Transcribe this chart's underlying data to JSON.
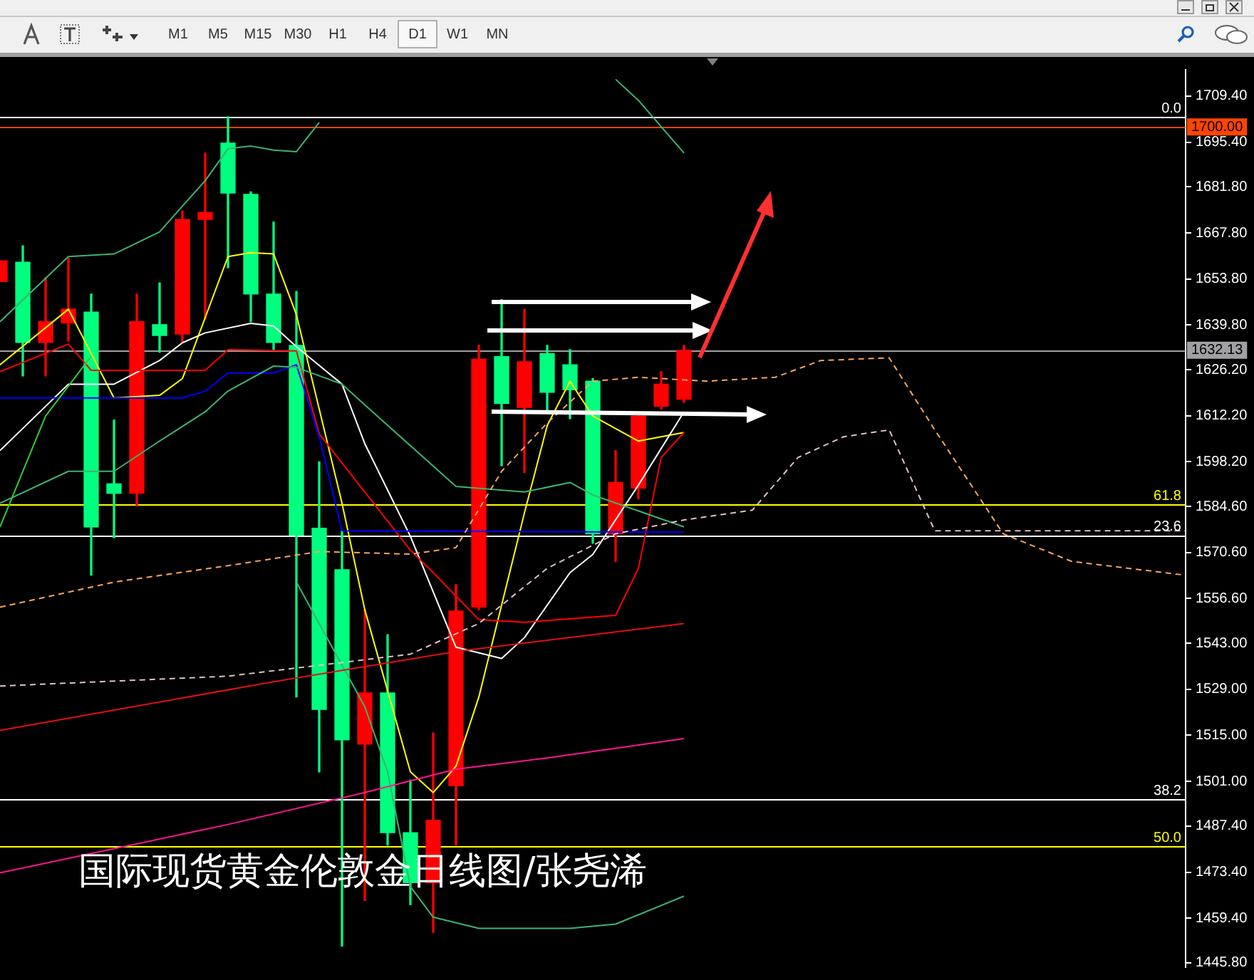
{
  "chart_data": {
    "type": "candlestick",
    "title": "国际现货黄金伦敦金日线图/张尧浠",
    "annotations": [
      "M1",
      "M5",
      "M15",
      "M30",
      "H1",
      "H4",
      "D1",
      "W1",
      "MN",
      {
        "text": "0.0",
        "y": 1703.1
      },
      {
        "text": "61.8",
        "y": 1585.2
      },
      {
        "text": "23.6",
        "y": 1575.9
      },
      {
        "text": "38.2",
        "y": 1495.5
      },
      {
        "text": "50.0",
        "y": 1481.2
      }
    ],
    "categories": [
      null,
      null,
      null,
      null,
      null,
      null,
      null,
      null,
      null,
      null,
      null,
      null,
      null,
      null,
      null,
      null,
      null,
      null,
      null,
      null,
      null,
      null,
      null,
      null,
      null,
      null,
      null,
      null,
      null,
      null,
      null,
      null,
      null,
      null,
      null,
      null,
      null,
      null,
      null,
      null,
      null,
      null,
      null,
      null,
      null,
      null,
      null,
      null,
      null,
      null,
      null,
      null,
      null
    ],
    "ylim": [
      1444.5,
      1717.4
    ],
    "yticks": [
      {
        "value": 1709.4,
        "label": "1709.40"
      },
      {
        "value": 1695.4,
        "label": "1695.40"
      },
      {
        "value": 1681.8,
        "label": "1681.80"
      },
      {
        "value": 1667.8,
        "label": "1667.80"
      },
      {
        "value": 1653.8,
        "label": "1653.80"
      },
      {
        "value": 1639.8,
        "label": "1639.80"
      },
      {
        "value": 1626.2,
        "label": "1626.20"
      },
      {
        "value": 1612.2,
        "label": "1612.20"
      },
      {
        "value": 1598.2,
        "label": "1598.20"
      },
      {
        "value": 1584.6,
        "label": "1584.60"
      },
      {
        "value": 1570.6,
        "label": "1570.60"
      },
      {
        "value": 1556.6,
        "label": "1556.60"
      },
      {
        "value": 1543,
        "label": "1543.00"
      },
      {
        "value": 1529,
        "label": "1529.00"
      },
      {
        "value": 1515,
        "label": "1515.00"
      },
      {
        "value": 1501,
        "label": "1501.00"
      },
      {
        "value": 1487.4,
        "label": "1487.40"
      },
      {
        "value": 1473.4,
        "label": "1473.40"
      },
      {
        "value": 1459.4,
        "label": "1459.40"
      },
      {
        "value": 1445.8,
        "label": "1445.80"
      }
    ],
    "tick_labels": "y",
    "marker": "none",
    "ref_lines": [
      {
        "axis": "y",
        "value": 1703.1,
        "color": "#ffffff"
      },
      {
        "axis": "y",
        "value": 1700,
        "label": "1700.00",
        "color": "#ff4500"
      },
      {
        "axis": "y",
        "value": 1632.13,
        "label": "1632.13",
        "color": "#a0a0a4"
      },
      {
        "axis": "y",
        "value": 1585.2,
        "color": "#ffff00"
      },
      {
        "axis": "y",
        "value": 1575.9,
        "color": "#ffffff"
      },
      {
        "axis": "y",
        "value": 1495.5,
        "color": "#ffffff"
      },
      {
        "axis": "y",
        "value": 1481.2,
        "color": "#ffff00"
      }
    ],
    "series": [
      {
        "type": "line",
        "color": "#f4a460",
        "line_style": "dashed",
        "values": [
          1554.0,
          null,
          null,
          null,
          null,
          1561.6,
          null,
          null,
          null,
          null,
          1566.6,
          null,
          null,
          null,
          1570.9,
          null,
          null,
          null,
          1570.1,
          null,
          1572.1,
          null,
          1595.3,
          null,
          1610.0,
          null,
          1622.7,
          null,
          1623.9,
          null,
          null,
          1622.7,
          null,
          null,
          1623.9,
          null,
          1629.0,
          null,
          null,
          1629.8,
          null,
          1607.9,
          null,
          null,
          1576.3,
          null,
          null,
          1567.9,
          null,
          null,
          null,
          null,
          1563.7
        ]
      },
      {
        "type": "line",
        "color": "#e0c0c0",
        "line_style": "dashed",
        "values": [
          1530.0,
          null,
          null,
          null,
          null,
          null,
          null,
          null,
          null,
          null,
          1533.0,
          null,
          null,
          null,
          1536.3,
          null,
          null,
          null,
          1539.7,
          null,
          null,
          1549.0,
          null,
          null,
          1565.8,
          null,
          null,
          1576.3,
          null,
          null,
          1580.5,
          null,
          null,
          1583.5,
          null,
          1599.5,
          null,
          1605.8,
          null,
          1607.9,
          null,
          1577.2,
          null,
          null,
          null,
          null,
          null,
          null,
          null,
          null,
          null,
          null,
          1577.2
        ]
      },
      {
        "type": "line",
        "color": "#ff1493",
        "values": [
          1473.2,
          null,
          null,
          null,
          null,
          null,
          null,
          null,
          null,
          null,
          1487.9,
          null,
          null,
          null,
          null,
          null,
          1497.6,
          null,
          null,
          null,
          1504.7,
          null,
          null,
          null,
          1508.1,
          null,
          null,
          null,
          null,
          null,
          1514.0,
          null,
          null,
          null,
          null,
          null,
          null,
          null,
          null,
          null,
          null,
          null,
          null,
          null,
          null,
          null,
          null,
          null,
          null,
          null,
          null,
          null,
          null
        ]
      },
      {
        "type": "line",
        "color": "#e01010",
        "values": [
          1516.5,
          null,
          null,
          null,
          null,
          null,
          null,
          null,
          null,
          null,
          null,
          null,
          1531.3,
          null,
          null,
          null,
          null,
          null,
          null,
          null,
          1540.5,
          null,
          null,
          null,
          null,
          null,
          null,
          null,
          null,
          null,
          1549.0,
          null,
          null,
          null,
          null,
          null,
          null,
          null,
          null,
          null,
          null,
          null,
          null,
          null,
          null,
          null,
          null,
          null,
          null,
          null,
          null,
          null,
          null
        ]
      },
      {
        "type": "line",
        "color": "#3cb371",
        "values": [
          1640.8,
          null,
          null,
          1660.6,
          null,
          1661.4,
          null,
          1668.1,
          null,
          1683.7,
          1693.4,
          1694.2,
          1693.0,
          1692.5,
          1701.4,
          null,
          null,
          null,
          null,
          null,
          null,
          null,
          null,
          null,
          null,
          null,
          null,
          null,
          null,
          null,
          null,
          null,
          null,
          null,
          null,
          null,
          null,
          null,
          null,
          null,
          null,
          null,
          null,
          null,
          null,
          null,
          null,
          null,
          null,
          null,
          null,
          null,
          null
        ]
      },
      {
        "type": "line",
        "color": "#3cb371",
        "values": [
          null,
          null,
          null,
          null,
          null,
          null,
          null,
          null,
          null,
          null,
          null,
          null,
          null,
          null,
          null,
          null,
          null,
          null,
          null,
          null,
          null,
          null,
          null,
          null,
          null,
          null,
          null,
          1714.5,
          1708.1,
          null,
          1692.1,
          null,
          null,
          null,
          null,
          null,
          null,
          null,
          null,
          null,
          null,
          null,
          null,
          null,
          null,
          null,
          null,
          null,
          null,
          null,
          null,
          null,
          null
        ]
      },
      {
        "type": "line",
        "color": "#3cb371",
        "values": [
          1585.6,
          null,
          null,
          1595.3,
          null,
          1595.3,
          null,
          1604.5,
          null,
          1613.4,
          1619.7,
          null,
          1627.3,
          1626.9,
          null,
          1621.8,
          1615.5,
          null,
          null,
          null,
          1590.7,
          null,
          null,
          1589.0,
          null,
          1591.9,
          1588.1,
          null,
          null,
          null,
          1578.4,
          null,
          null,
          null,
          null,
          null,
          null,
          null,
          null,
          null,
          null,
          null,
          null,
          null,
          null,
          null,
          null,
          null,
          null,
          null,
          null,
          null,
          null
        ]
      },
      {
        "type": "line",
        "color": "#3cb371",
        "values": [
          null,
          null,
          null,
          null,
          null,
          null,
          null,
          null,
          null,
          null,
          null,
          null,
          null,
          1561.6,
          null,
          null,
          1523.7,
          1503.9,
          1469.0,
          1459.7,
          null,
          1456.3,
          null,
          null,
          null,
          1456.3,
          null,
          1457.6,
          null,
          null,
          1466.1,
          null,
          null,
          null,
          null,
          null,
          null,
          null,
          null,
          null,
          null,
          null,
          null,
          null,
          null,
          null,
          null,
          null,
          null,
          null,
          null,
          null,
          null
        ]
      },
      {
        "type": "line",
        "color": "#32cd32",
        "values": [
          1578.4,
          null,
          1612.1,
          null,
          1630.3,
          null,
          null,
          null,
          null,
          null,
          null,
          null,
          null,
          null,
          null,
          null,
          null,
          null,
          null,
          null,
          null,
          null,
          null,
          null,
          null,
          null,
          null,
          null,
          null,
          null,
          null,
          null,
          null,
          null,
          null,
          null,
          null,
          null,
          null,
          null,
          null,
          null,
          null,
          null,
          null,
          null,
          null,
          null,
          null,
          null,
          null,
          null,
          null
        ]
      },
      {
        "type": "line",
        "color": "#0000ff",
        "values": [
          1617.6,
          null,
          null,
          null,
          null,
          null,
          null,
          null,
          1617.6,
          1619.7,
          1625.2,
          null,
          1625.2,
          1627.7,
          1605.8,
          1577.2,
          null,
          null,
          null,
          null,
          null,
          null,
          null,
          null,
          null,
          null,
          null,
          null,
          null,
          null,
          1576.8,
          null,
          null,
          null,
          null,
          null,
          null,
          null,
          null,
          null,
          null,
          null,
          null,
          null,
          null,
          null,
          null,
          null,
          null,
          null,
          null,
          null,
          null
        ]
      },
      {
        "type": "line",
        "color": "#ff0000",
        "values": [
          1625.6,
          null,
          null,
          1634.0,
          1626.0,
          null,
          null,
          null,
          null,
          1626.0,
          1632.3,
          null,
          null,
          1631.9,
          1606.7,
          null,
          null,
          null,
          1571.3,
          1564.5,
          null,
          1550.2,
          null,
          1549.4,
          null,
          null,
          null,
          1551.5,
          1565.8,
          1599.5,
          1607.1,
          null,
          null,
          null,
          null,
          null,
          null,
          null,
          null,
          null,
          null,
          null,
          null,
          null,
          null,
          null,
          null,
          null,
          null,
          null,
          null,
          null,
          null
        ]
      },
      {
        "type": "line",
        "color": "#ffffff",
        "values": [
          1601.6,
          null,
          null,
          1621.8,
          null,
          1621.8,
          null,
          1629.0,
          1634.4,
          1637.4,
          null,
          1640.3,
          1639.5,
          1633.2,
          null,
          1621.8,
          1603.7,
          null,
          1575.5,
          null,
          1541.8,
          null,
          1538.4,
          1544.7,
          null,
          1564.5,
          1570.0,
          null,
          1591.1,
          null,
          1613.4,
          null,
          null,
          null,
          null,
          null,
          null,
          null,
          null,
          null,
          null,
          null,
          null,
          null,
          null,
          null,
          null,
          null,
          null,
          null,
          null,
          null,
          null
        ]
      },
      {
        "type": "line",
        "color": "#ffff00",
        "values": [
          1627.7,
          null,
          null,
          1644.6,
          null,
          1617.6,
          null,
          1618.4,
          1623.5,
          null,
          1660.6,
          1661.8,
          1661.4,
          1642.9,
          null,
          1585.6,
          1553.2,
          null,
          1503.9,
          1497.6,
          1505.6,
          1526.6,
          null,
          1582.6,
          1609.2,
          1622.7,
          1612.1,
          null,
          1604.5,
          null,
          1607.1,
          null,
          null,
          null,
          null,
          null,
          null,
          null,
          null,
          null,
          null,
          null,
          null,
          null,
          null,
          null,
          null,
          null,
          null,
          null,
          null,
          null,
          null
        ]
      },
      {
        "type": "candlestick",
        "colors": [
          "#ff0000",
          "#00ff7f",
          "#ff0000",
          "#ff0000",
          "#00ff7f",
          "#00ff7f",
          "#ff0000",
          "#00ff7f",
          "#ff0000",
          "#ff0000",
          "#00ff7f",
          "#00ff7f",
          "#00ff7f",
          "#00ff7f",
          "#00ff7f",
          "#00ff7f",
          "#ff0000",
          "#00ff7f",
          "#00ff7f",
          "#ff0000",
          "#ff0000",
          "#ff0000",
          "#00ff7f",
          "#ff0000",
          "#00ff7f",
          "#00ff7f",
          "#00ff7f",
          "#ff0000",
          "#ff0000",
          "#ff0000",
          "#ff0000",
          null,
          null,
          null,
          null,
          null,
          null,
          null,
          null,
          null,
          null,
          null,
          null,
          null,
          null,
          null,
          null,
          null,
          null,
          null,
          null,
          null,
          null
        ],
        "ohlc": [
          [
            1653.0,
            1659.3,
            1653.0,
            1659.3
          ],
          [
            1658.9,
            1663.9,
            1624.3,
            1634.5
          ],
          [
            1634.5,
            1654.2,
            1624.3,
            1640.8
          ],
          [
            1640.4,
            1660.1,
            1634.9,
            1644.6
          ],
          [
            1643.7,
            1649.2,
            1563.7,
            1578.4
          ],
          [
            1591.5,
            1610.9,
            1575.1,
            1588.6
          ],
          [
            1588.6,
            1649.2,
            1584.8,
            1640.8
          ],
          [
            1639.9,
            1652.6,
            1631.5,
            1636.6
          ],
          [
            1637.0,
            1674.5,
            1634.5,
            1671.9
          ],
          [
            1671.9,
            1692.1,
            1641.6,
            1674.0
          ],
          [
            1695.1,
            1703.1,
            1657.2,
            1679.9
          ],
          [
            1679.5,
            1680.3,
            1640.8,
            1649.2
          ],
          [
            1649.2,
            1671.1,
            1632.3,
            1634.5
          ],
          [
            1633.6,
            1650.0,
            1526.7,
            1575.9
          ],
          [
            1578.0,
            1598.2,
            1503.9,
            1522.9
          ],
          [
            1565.4,
            1577.2,
            1450.9,
            1513.6
          ],
          [
            1512.3,
            1553.2,
            1464.8,
            1527.9
          ],
          [
            1527.9,
            1545.6,
            1481.6,
            1485.4
          ],
          [
            1485.4,
            1501.4,
            1463.5,
            1470.2
          ],
          [
            1470.2,
            1515.7,
            1455.1,
            1489.2
          ],
          [
            1499.7,
            1560.8,
            1481.6,
            1552.8
          ],
          [
            1554.0,
            1633.6,
            1553.2,
            1629.4
          ],
          [
            1630.2,
            1647.5,
            1597.0,
            1615.9
          ],
          [
            1614.7,
            1644.6,
            1594.9,
            1628.6
          ],
          [
            1631.1,
            1633.6,
            1613.4,
            1619.3
          ],
          [
            1627.7,
            1632.3,
            1611.3,
            1620.1
          ],
          [
            1622.7,
            1623.5,
            1573.4,
            1576.3
          ],
          [
            1576.3,
            1601.6,
            1567.9,
            1591.9
          ],
          [
            1590.2,
            1612.6,
            1586.9,
            1612.1
          ],
          [
            1615.1,
            1625.6,
            1614.2,
            1621.8
          ],
          [
            1617.2,
            1633.6,
            1616.3,
            1632.1
          ],
          null,
          null,
          null,
          null,
          null,
          null,
          null,
          null,
          null,
          null,
          null,
          null,
          null,
          null,
          null,
          null,
          null,
          null,
          null,
          null,
          null,
          null
        ]
      }
    ]
  }
}
